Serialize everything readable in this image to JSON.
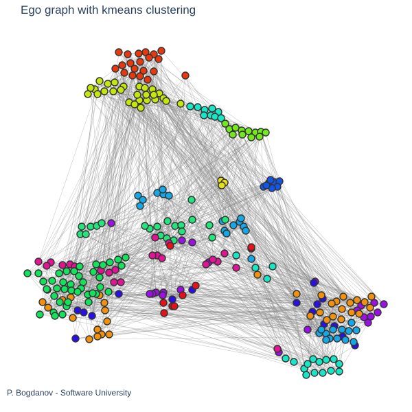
{
  "title": "Ego graph with kmeans clustering",
  "credit": "P. Bogdanov - Software University",
  "graph": {
    "edge_color": "#888888",
    "node_outline_color": "#333333",
    "cluster_colors": [
      "#e8380d",
      "#c5e60e",
      "#17e7c5",
      "#74e81e",
      "#e6df1a",
      "#1356e6",
      "#16a8e6",
      "#23e57e",
      "#9b10e6",
      "#e11493",
      "#2a10e6",
      "#f2900f",
      "#12e25c",
      "#e8101a"
    ]
  }
}
